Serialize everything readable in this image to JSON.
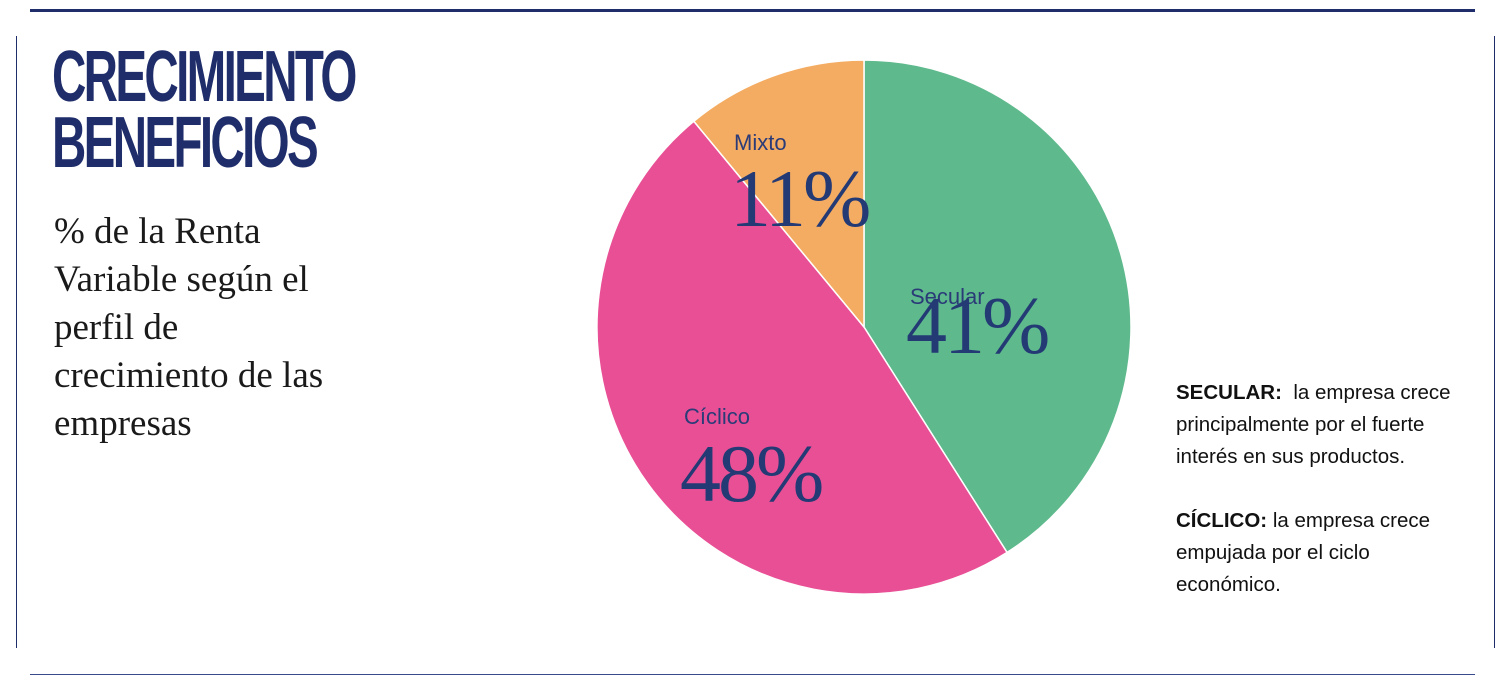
{
  "title": {
    "line1": "CRECIMIENTO",
    "line2": "BENEFICIOS"
  },
  "subtitle": "% de la Renta Variable según el perfil de crecimiento de las empresas",
  "colors": {
    "secular": "#5eb98c",
    "ciclico": "#e84f95",
    "mixto": "#f4ac62",
    "brand": "#1f2d6b"
  },
  "chart_data": {
    "type": "pie",
    "title": "",
    "slices": [
      {
        "label": "Secular",
        "value": 41,
        "display": "41%",
        "color": "#5eb98c"
      },
      {
        "label": "Cíclico",
        "value": 48,
        "display": "48%",
        "color": "#e84f95"
      },
      {
        "label": "Mixto",
        "value": 11,
        "display": "11%",
        "color": "#f4ac62"
      }
    ],
    "start": "12 o'clock",
    "direction": "clockwise",
    "legend": "none"
  },
  "definitions": [
    {
      "term": "SECULAR:",
      "text": "la empresa crece principalmente por el fuerte interés en sus productos."
    },
    {
      "term": "CÍCLICO:",
      "text": "la empresa crece empujada por el ciclo económico."
    }
  ]
}
